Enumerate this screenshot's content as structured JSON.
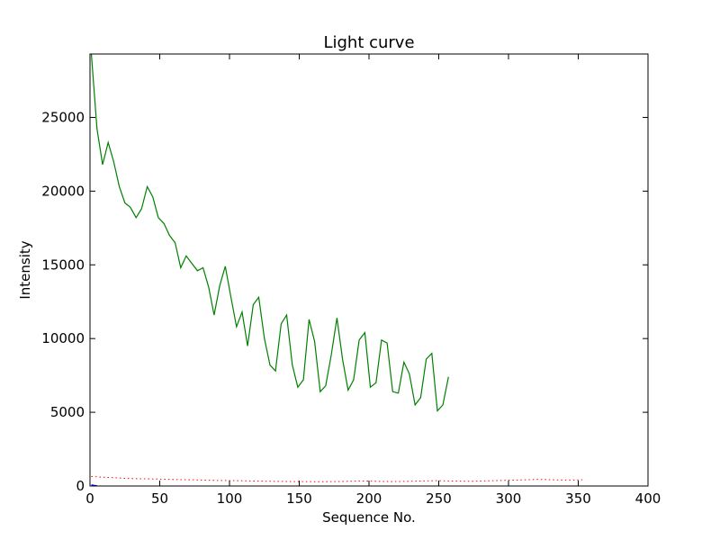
{
  "chart_data": {
    "type": "line",
    "title": "Light curve",
    "xlabel": "Sequence No.",
    "ylabel": "Intensity",
    "xlim": [
      0,
      400
    ],
    "ylim": [
      0,
      29300
    ],
    "xticks": [
      "0",
      "50",
      "100",
      "150",
      "200",
      "250",
      "300",
      "350",
      "400"
    ],
    "yticks": [
      "0",
      "5000",
      "10000",
      "15000",
      "20000",
      "25000"
    ],
    "grid": false,
    "series": [
      {
        "color": "#008000",
        "style": "solid",
        "x_start": 1,
        "x_step": 4,
        "values": [
          29300,
          24200,
          21800,
          23300,
          22000,
          20300,
          19200,
          18900,
          18200,
          18800,
          20300,
          19600,
          18200,
          17800,
          17000,
          16500,
          14800,
          15600,
          15100,
          14600,
          14800,
          13500,
          11600,
          13600,
          14900,
          12800,
          10800,
          11800,
          9500,
          12300,
          12800,
          10000,
          8200,
          7800,
          11000,
          11600,
          8200,
          6700,
          7200,
          11300,
          9800,
          6400,
          6800,
          8900,
          11400,
          8600,
          6500,
          7200,
          9900,
          10400,
          6700,
          7000,
          9900,
          9700,
          6400,
          6300,
          8400,
          7600,
          5500,
          6000,
          8600,
          9000,
          5100,
          5500,
          7400
        ]
      },
      {
        "color": "#ff0000",
        "style": "dotted",
        "x_start": 1,
        "x_step": 8,
        "values": [
          650,
          600,
          560,
          520,
          500,
          480,
          470,
          450,
          430,
          420,
          400,
          380,
          370,
          360,
          350,
          330,
          320,
          310,
          300,
          300,
          290,
          290,
          300,
          320,
          340,
          330,
          310,
          300,
          310,
          330,
          350,
          360,
          340,
          330,
          320,
          340,
          360,
          380,
          400,
          420,
          450,
          430,
          410,
          400,
          420
        ]
      },
      {
        "color": "#0000ff",
        "style": "solid",
        "x": [
          1,
          2,
          3,
          4,
          5
        ],
        "values": [
          80,
          60,
          40,
          30,
          20
        ]
      }
    ]
  }
}
